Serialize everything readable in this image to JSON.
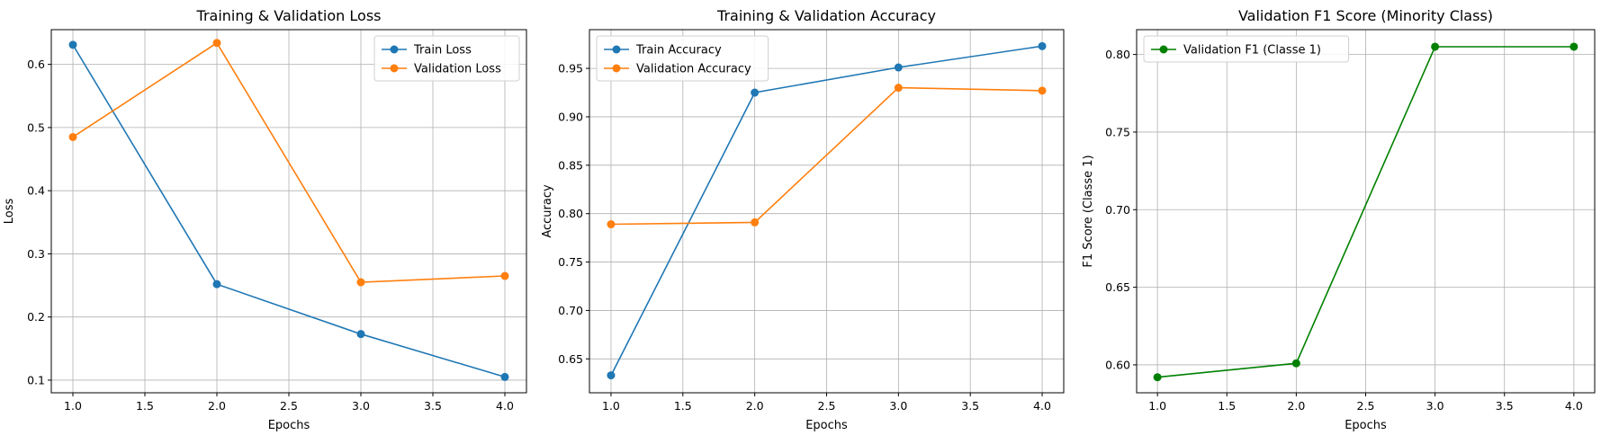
{
  "figure": {
    "background": "#ffffff"
  },
  "chart_data": [
    {
      "type": "line",
      "title": "Training & Validation Loss",
      "xlabel": "Epochs",
      "ylabel": "Loss",
      "xlim": [
        0.85,
        4.15
      ],
      "ylim": [
        0.08,
        0.655
      ],
      "xticks": [
        1.0,
        1.5,
        2.0,
        2.5,
        3.0,
        3.5,
        4.0
      ],
      "yticks": [
        0.1,
        0.2,
        0.3,
        0.4,
        0.5,
        0.6
      ],
      "xtick_labels": [
        "1.0",
        "1.5",
        "2.0",
        "2.5",
        "3.0",
        "3.5",
        "4.0"
      ],
      "ytick_labels": [
        "0.1",
        "0.2",
        "0.3",
        "0.4",
        "0.5",
        "0.6"
      ],
      "grid": true,
      "legend_position": "top-right",
      "x": [
        1,
        2,
        3,
        4
      ],
      "series": [
        {
          "name": "Train Loss",
          "color": "#1f77b4",
          "values": [
            0.631,
            0.252,
            0.173,
            0.105
          ]
        },
        {
          "name": "Validation Loss",
          "color": "#ff7f0e",
          "values": [
            0.485,
            0.634,
            0.255,
            0.265
          ]
        }
      ]
    },
    {
      "type": "line",
      "title": "Training & Validation Accuracy",
      "xlabel": "Epochs",
      "ylabel": "Accuracy",
      "xlim": [
        0.85,
        4.15
      ],
      "ylim": [
        0.615,
        0.99
      ],
      "xticks": [
        1.0,
        1.5,
        2.0,
        2.5,
        3.0,
        3.5,
        4.0
      ],
      "yticks": [
        0.65,
        0.7,
        0.75,
        0.8,
        0.85,
        0.9,
        0.95
      ],
      "xtick_labels": [
        "1.0",
        "1.5",
        "2.0",
        "2.5",
        "3.0",
        "3.5",
        "4.0"
      ],
      "ytick_labels": [
        "0.65",
        "0.70",
        "0.75",
        "0.80",
        "0.85",
        "0.90",
        "0.95"
      ],
      "grid": true,
      "legend_position": "top-left",
      "x": [
        1,
        2,
        3,
        4
      ],
      "series": [
        {
          "name": "Train Accuracy",
          "color": "#1f77b4",
          "values": [
            0.633,
            0.925,
            0.951,
            0.973
          ]
        },
        {
          "name": "Validation Accuracy",
          "color": "#ff7f0e",
          "values": [
            0.789,
            0.791,
            0.93,
            0.927
          ]
        }
      ]
    },
    {
      "type": "line",
      "title": "Validation F1 Score (Minority Class)",
      "xlabel": "Epochs",
      "ylabel": "F1 Score (Classe 1)",
      "xlim": [
        0.85,
        4.15
      ],
      "ylim": [
        0.582,
        0.816
      ],
      "xticks": [
        1.0,
        1.5,
        2.0,
        2.5,
        3.0,
        3.5,
        4.0
      ],
      "yticks": [
        0.6,
        0.65,
        0.7,
        0.75,
        0.8
      ],
      "xtick_labels": [
        "1.0",
        "1.5",
        "2.0",
        "2.5",
        "3.0",
        "3.5",
        "4.0"
      ],
      "ytick_labels": [
        "0.60",
        "0.65",
        "0.70",
        "0.75",
        "0.80"
      ],
      "grid": true,
      "legend_position": "top-left",
      "x": [
        1,
        2,
        3,
        4
      ],
      "series": [
        {
          "name": "Validation F1 (Classe 1)",
          "color": "#008000",
          "values": [
            0.592,
            0.601,
            0.805,
            0.805
          ]
        }
      ]
    }
  ]
}
